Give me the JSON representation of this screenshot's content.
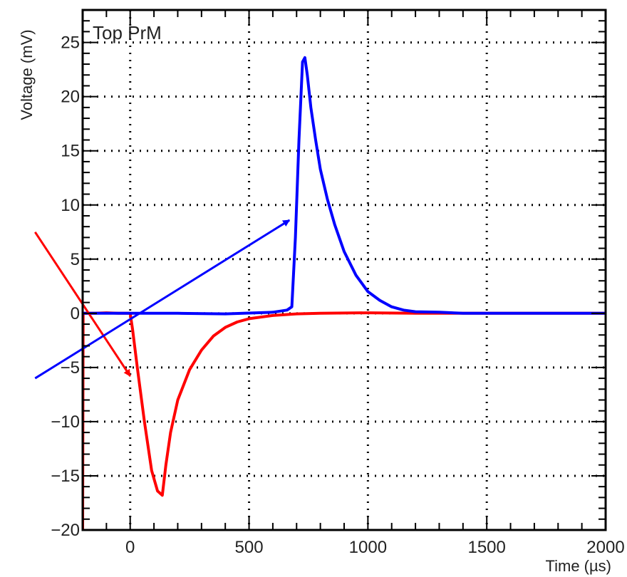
{
  "chart_data": {
    "type": "line",
    "title": "Top PrM",
    "xlabel": "Time (µs)",
    "ylabel": "Voltage (mV)",
    "xlim": [
      -200,
      2000
    ],
    "ylim": [
      -20,
      28
    ],
    "x_ticks": [
      0,
      500,
      1000,
      1500,
      2000
    ],
    "y_ticks": [
      -20,
      -15,
      -10,
      -5,
      0,
      5,
      10,
      15,
      20,
      25
    ],
    "grid": true,
    "series": [
      {
        "color": "#ff0000",
        "points": [
          [
            -200,
            -20
          ],
          [
            -198,
            0
          ],
          [
            -150,
            0
          ],
          [
            -100,
            0.05
          ],
          [
            -50,
            0
          ],
          [
            0,
            0
          ],
          [
            10,
            -1.5
          ],
          [
            30,
            -5
          ],
          [
            60,
            -10
          ],
          [
            90,
            -14.5
          ],
          [
            115,
            -16.4
          ],
          [
            135,
            -16.8
          ],
          [
            150,
            -14
          ],
          [
            170,
            -11
          ],
          [
            200,
            -8
          ],
          [
            250,
            -5.2
          ],
          [
            300,
            -3.4
          ],
          [
            350,
            -2.1
          ],
          [
            400,
            -1.3
          ],
          [
            450,
            -0.8
          ],
          [
            500,
            -0.5
          ],
          [
            600,
            -0.2
          ],
          [
            700,
            -0.05
          ],
          [
            800,
            0
          ],
          [
            1000,
            0.05
          ],
          [
            1200,
            0
          ],
          [
            1500,
            0
          ],
          [
            2000,
            0
          ]
        ]
      },
      {
        "color": "#0000ff",
        "points": [
          [
            -200,
            0
          ],
          [
            0,
            0
          ],
          [
            200,
            0
          ],
          [
            400,
            -0.05
          ],
          [
            600,
            0.1
          ],
          [
            660,
            0.3
          ],
          [
            680,
            0.6
          ],
          [
            695,
            7
          ],
          [
            710,
            16
          ],
          [
            725,
            23.2
          ],
          [
            735,
            23.6
          ],
          [
            745,
            22
          ],
          [
            760,
            19
          ],
          [
            780,
            16
          ],
          [
            800,
            13.3
          ],
          [
            830,
            10.5
          ],
          [
            860,
            8.2
          ],
          [
            900,
            5.7
          ],
          [
            950,
            3.5
          ],
          [
            1000,
            2
          ],
          [
            1050,
            1.2
          ],
          [
            1100,
            0.6
          ],
          [
            1150,
            0.3
          ],
          [
            1200,
            0.15
          ],
          [
            1300,
            0.1
          ],
          [
            1400,
            0
          ],
          [
            1500,
            0
          ],
          [
            1700,
            0
          ],
          [
            2000,
            0
          ]
        ]
      }
    ],
    "annotations": [
      {
        "color": "#ff0000",
        "from": [
          -400,
          7.5
        ],
        "to": [
          0,
          -5.8
        ]
      },
      {
        "color": "#0000ff",
        "from": [
          -400,
          -6
        ],
        "to": [
          670,
          8.6
        ]
      }
    ]
  }
}
